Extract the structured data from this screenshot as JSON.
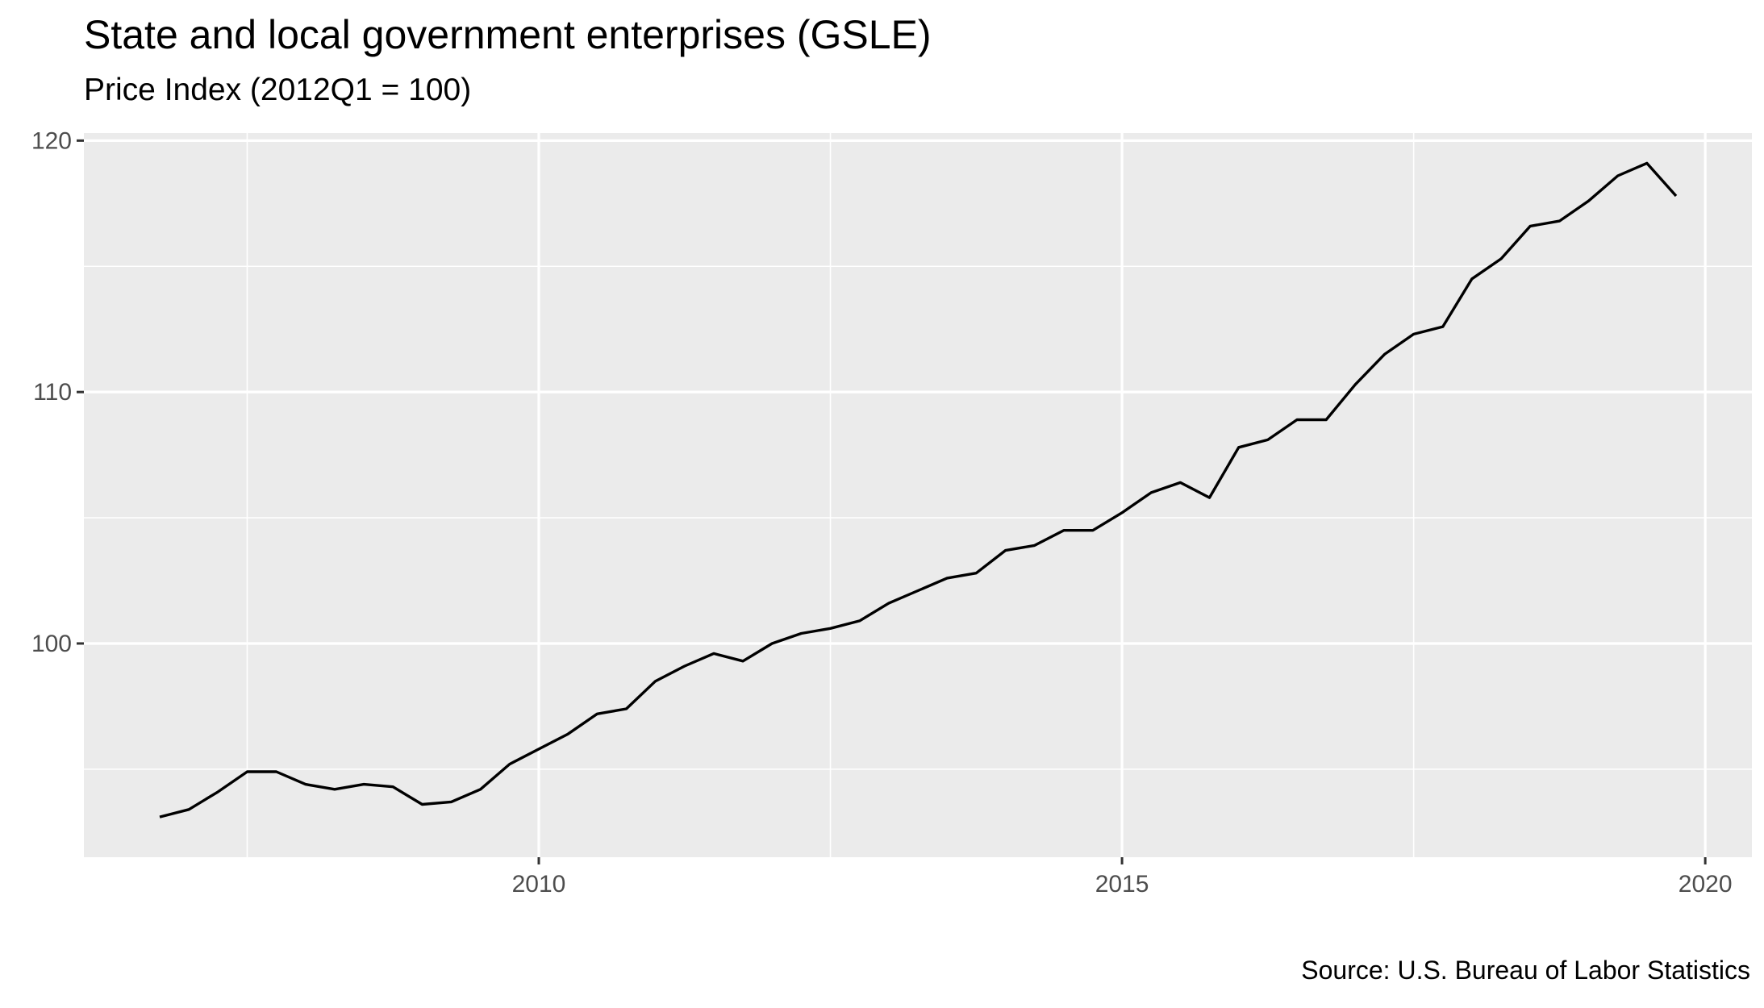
{
  "chart_data": {
    "type": "line",
    "title": "State and local government enterprises (GSLE)",
    "subtitle": "Price Index (2012Q1 = 100)",
    "caption": "Source: U.S. Bureau of Labor Statistics",
    "xlabel": "",
    "ylabel": "",
    "xlim": [
      2006.1,
      2020.4
    ],
    "ylim": [
      91.5,
      120.3
    ],
    "x_ticks": [
      2010,
      2015,
      2020
    ],
    "x_tick_labels": [
      "2010",
      "2015",
      "2020"
    ],
    "y_ticks": [
      100,
      110,
      120
    ],
    "y_tick_labels": [
      "100",
      "110",
      "120"
    ],
    "grid": true,
    "legend": "none",
    "colors": {
      "panel": "#ebebeb",
      "grid": "#ffffff",
      "line": "#000000",
      "tick_text": "#4d4d4d",
      "tick_mark": "#333333"
    },
    "series": [
      {
        "x": [
          2006.75,
          2007.0,
          2007.25,
          2007.5,
          2007.75,
          2008.0,
          2008.25,
          2008.5,
          2008.75,
          2009.0,
          2009.25,
          2009.5,
          2009.75,
          2010.0,
          2010.25,
          2010.5,
          2010.75,
          2011.0,
          2011.25,
          2011.5,
          2011.75,
          2012.0,
          2012.25,
          2012.5,
          2012.75,
          2013.0,
          2013.25,
          2013.5,
          2013.75,
          2014.0,
          2014.25,
          2014.5,
          2014.75,
          2015.0,
          2015.25,
          2015.5,
          2015.75,
          2016.0,
          2016.25,
          2016.5,
          2016.75,
          2017.0,
          2017.25,
          2017.5,
          2017.75,
          2018.0,
          2018.25,
          2018.5,
          2018.75,
          2019.0,
          2019.25,
          2019.5,
          2019.75
        ],
        "values": [
          93.1,
          93.4,
          94.1,
          94.9,
          94.9,
          94.4,
          94.2,
          94.4,
          94.3,
          93.6,
          93.7,
          94.2,
          95.2,
          95.8,
          96.4,
          97.2,
          97.4,
          98.5,
          99.1,
          99.6,
          99.3,
          100.0,
          100.4,
          100.6,
          100.9,
          101.6,
          102.1,
          102.6,
          102.8,
          103.7,
          103.9,
          104.5,
          104.5,
          105.2,
          106.0,
          106.4,
          105.8,
          107.8,
          108.1,
          108.9,
          108.9,
          110.3,
          111.5,
          112.3,
          112.6,
          114.5,
          115.3,
          116.6,
          116.8,
          117.6,
          118.6,
          119.1,
          117.8
        ]
      }
    ]
  }
}
